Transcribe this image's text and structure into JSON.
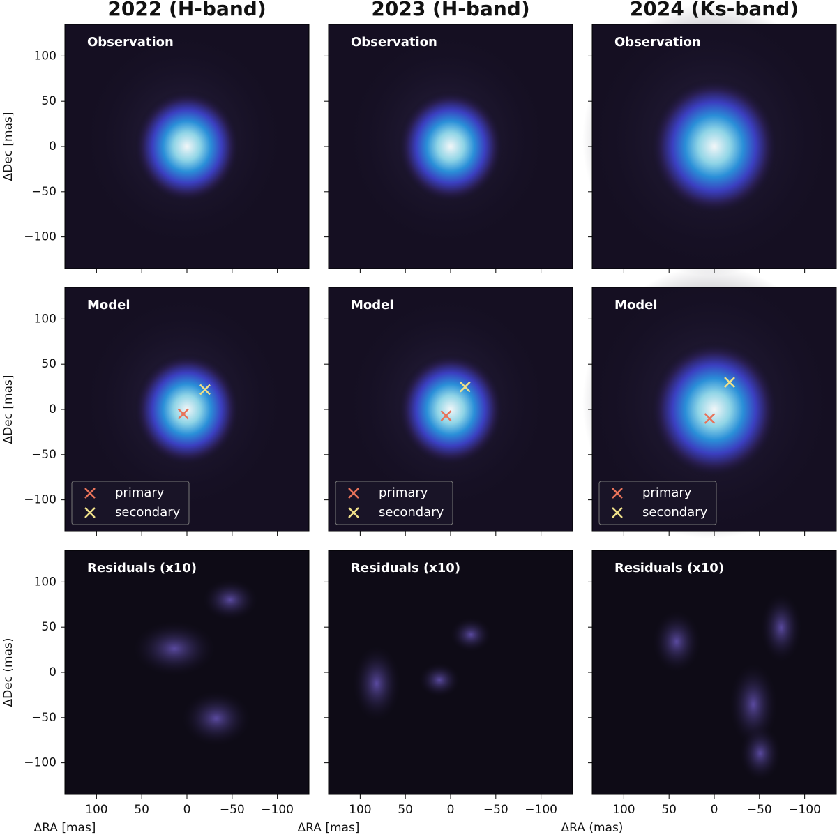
{
  "chart_data": [
    {
      "type": "image",
      "title": "2022 (H-band)",
      "label": "Observation",
      "ylabel": "ΔDec [mas]",
      "xlim": [
        135,
        -135
      ],
      "ylim": [
        -135,
        135
      ],
      "xticks": [
        100,
        50,
        0,
        {
          "value": -50,
          "label": "−50"
        },
        {
          "value": -100,
          "label": "−100"
        }
      ],
      "yticks": [
        {
          "value": -100,
          "label": "−100"
        },
        {
          "value": -50,
          "label": "−50"
        },
        0,
        50,
        100
      ]
    },
    {
      "type": "image",
      "title": "2023 (H-band)",
      "label": "Observation",
      "xlim": [
        135,
        -135
      ],
      "ylim": [
        -135,
        135
      ],
      "xticks": [
        100,
        50,
        0,
        {
          "value": -50,
          "label": "−50"
        },
        {
          "value": -100,
          "label": "−100"
        }
      ],
      "yticks": [
        {
          "value": -100,
          "label": "−100"
        },
        {
          "value": -50,
          "label": "−50"
        },
        0,
        50,
        100
      ]
    },
    {
      "type": "image",
      "title": "2024 (Ks-band)",
      "label": "Observation",
      "xlim": [
        135,
        -135
      ],
      "ylim": [
        -135,
        135
      ],
      "xticks": [
        100,
        50,
        0,
        {
          "value": -50,
          "label": "−50"
        },
        {
          "value": -100,
          "label": "−100"
        }
      ],
      "yticks": [
        {
          "value": -100,
          "label": "−100"
        },
        {
          "value": -50,
          "label": "−50"
        },
        0,
        50,
        100
      ]
    },
    {
      "type": "scatter",
      "label": "Model",
      "ylabel": "ΔDec [mas]",
      "xlim": [
        135,
        -135
      ],
      "ylim": [
        -135,
        135
      ],
      "xticks": [
        100,
        50,
        0,
        {
          "value": -50,
          "label": "−50"
        },
        {
          "value": -100,
          "label": "−100"
        }
      ],
      "yticks": [
        {
          "value": -100,
          "label": "−100"
        },
        {
          "value": -50,
          "label": "−50"
        },
        0,
        50,
        100
      ],
      "legend": "lower left",
      "series": [
        {
          "name": "primary",
          "color": "#e8735a",
          "x": [
            4
          ],
          "values": [
            -5
          ]
        },
        {
          "name": "secondary",
          "color": "#f0e08a",
          "x": [
            -20
          ],
          "values": [
            22
          ]
        }
      ]
    },
    {
      "type": "scatter",
      "label": "Model",
      "xlim": [
        135,
        -135
      ],
      "ylim": [
        -135,
        135
      ],
      "xticks": [
        100,
        50,
        0,
        {
          "value": -50,
          "label": "−50"
        },
        {
          "value": -100,
          "label": "−100"
        }
      ],
      "yticks": [
        {
          "value": -100,
          "label": "−100"
        },
        {
          "value": -50,
          "label": "−50"
        },
        0,
        50,
        100
      ],
      "legend": "lower left",
      "series": [
        {
          "name": "primary",
          "color": "#e8735a",
          "x": [
            5
          ],
          "values": [
            -7
          ]
        },
        {
          "name": "secondary",
          "color": "#f0e08a",
          "x": [
            -16
          ],
          "values": [
            25
          ]
        }
      ]
    },
    {
      "type": "scatter",
      "label": "Model",
      "xlim": [
        135,
        -135
      ],
      "ylim": [
        -135,
        135
      ],
      "xticks": [
        100,
        50,
        0,
        {
          "value": -50,
          "label": "−50"
        },
        {
          "value": -100,
          "label": "−100"
        }
      ],
      "yticks": [
        {
          "value": -100,
          "label": "−100"
        },
        {
          "value": -50,
          "label": "−50"
        },
        0,
        50,
        100
      ],
      "legend": "lower left",
      "series": [
        {
          "name": "primary",
          "color": "#e8735a",
          "x": [
            5
          ],
          "values": [
            -10
          ]
        },
        {
          "name": "secondary",
          "color": "#f0e08a",
          "x": [
            -17
          ],
          "values": [
            30
          ]
        }
      ]
    },
    {
      "type": "image",
      "label": "Residuals (x10)",
      "ylabel": "ΔDec (mas)",
      "xlabel": "ΔRA [mas]",
      "xlim": [
        135,
        -135
      ],
      "ylim": [
        -135,
        135
      ],
      "xticks": [
        100,
        50,
        0,
        {
          "value": -50,
          "label": "−50"
        },
        {
          "value": -100,
          "label": "−100"
        }
      ],
      "yticks": [
        {
          "value": -100,
          "label": "−100"
        },
        {
          "value": -50,
          "label": "−50"
        },
        0,
        50,
        100
      ]
    },
    {
      "type": "image",
      "label": "Residuals (x10)",
      "xlabel": "ΔRA [mas]",
      "xlim": [
        135,
        -135
      ],
      "ylim": [
        -135,
        135
      ],
      "xticks": [
        100,
        50,
        0,
        {
          "value": -50,
          "label": "−50"
        },
        {
          "value": -100,
          "label": "−100"
        }
      ],
      "yticks": [
        {
          "value": -100,
          "label": "−100"
        },
        {
          "value": -50,
          "label": "−50"
        },
        0,
        50,
        100
      ]
    },
    {
      "type": "image",
      "label": "Residuals (x10)",
      "xlabel": "ΔRA (mas)",
      "xlim": [
        135,
        -135
      ],
      "ylim": [
        -135,
        135
      ],
      "xticks": [
        100,
        50,
        0,
        {
          "value": -50,
          "label": "−50"
        },
        {
          "value": -100,
          "label": "−100"
        }
      ],
      "yticks": [
        {
          "value": -100,
          "label": "−100"
        },
        {
          "value": -50,
          "label": "−50"
        },
        0,
        50,
        100
      ]
    }
  ]
}
